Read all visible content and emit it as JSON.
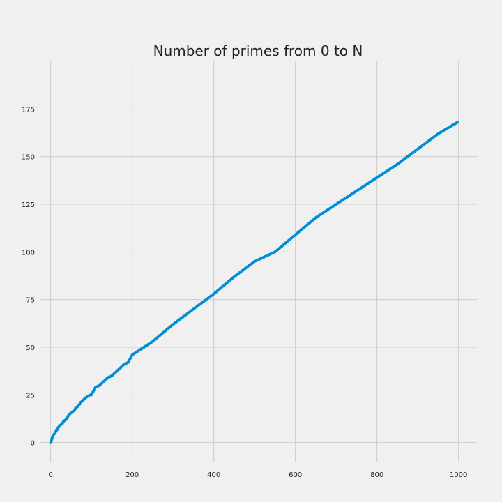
{
  "chart_data": {
    "type": "line",
    "title": "Number of primes from 0 to N",
    "xlabel": "",
    "ylabel": "",
    "xlim": [
      -25,
      1045
    ],
    "ylim": [
      -10,
      200
    ],
    "x_ticks": [
      0,
      200,
      400,
      600,
      800,
      1000
    ],
    "y_ticks": [
      0,
      25,
      50,
      75,
      100,
      125,
      150,
      175
    ],
    "grid": true,
    "series_color": "#008fd5",
    "background_color": "#f0f0f0",
    "series": [
      {
        "x": [
          0,
          2,
          3,
          5,
          7,
          11,
          13,
          17,
          19,
          23,
          29,
          31,
          37,
          41,
          43,
          47,
          53,
          59,
          61,
          67,
          71,
          73,
          79,
          83,
          89,
          97,
          100,
          110,
          120,
          130,
          140,
          150,
          160,
          170,
          180,
          190,
          200,
          250,
          300,
          350,
          400,
          450,
          500,
          550,
          600,
          650,
          700,
          750,
          800,
          850,
          900,
          950,
          997
        ],
        "y": [
          0,
          1,
          2,
          3,
          4,
          5,
          6,
          7,
          8,
          9,
          10,
          11,
          12,
          13,
          14,
          15,
          16,
          17,
          18,
          19,
          20,
          21,
          22,
          23,
          24,
          25,
          25,
          29,
          30,
          32,
          34,
          35,
          37,
          39,
          41,
          42,
          46,
          53,
          62,
          70,
          78,
          87,
          95,
          100,
          109,
          118,
          125,
          132,
          139,
          146,
          154,
          162,
          168
        ]
      }
    ]
  }
}
